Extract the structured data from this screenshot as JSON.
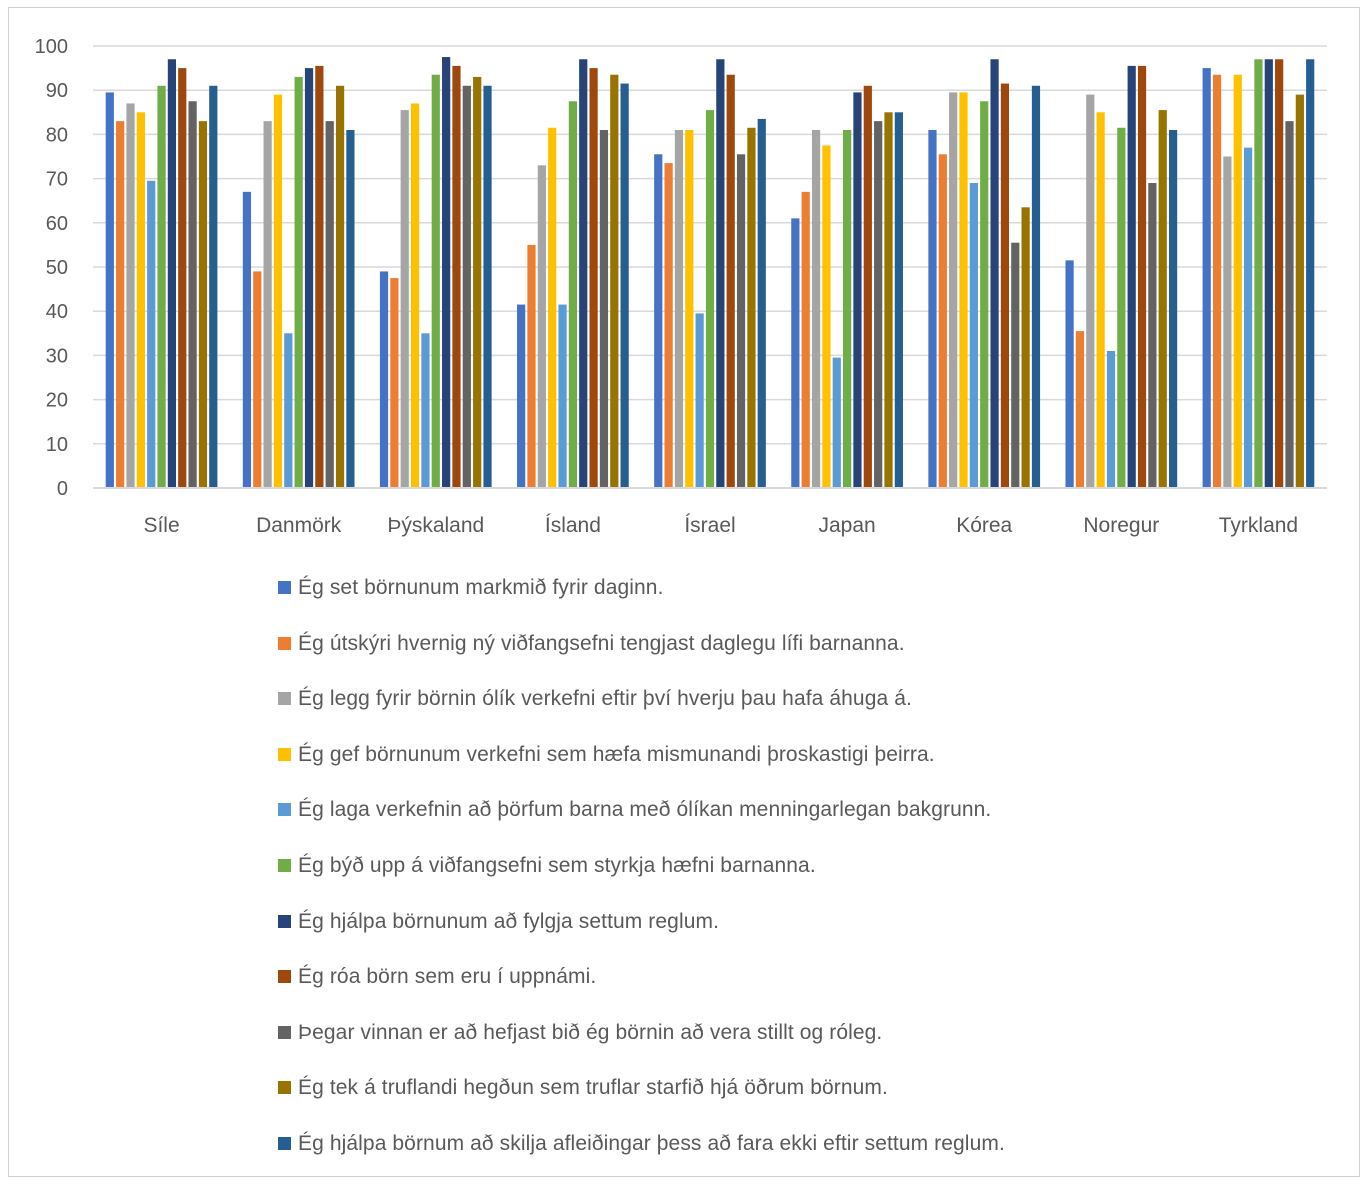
{
  "chart_data": {
    "type": "bar",
    "categories": [
      "Síle",
      "Danmörk",
      "Þýskaland",
      "Ísland",
      "Ísrael",
      "Japan",
      "Kórea",
      "Noregur",
      "Tyrkland"
    ],
    "ylim": [
      0,
      100
    ],
    "yticks": [
      0,
      10,
      20,
      30,
      40,
      50,
      60,
      70,
      80,
      90,
      100
    ],
    "grid": true,
    "legend_position": "bottom",
    "title": "",
    "xlabel": "",
    "ylabel": "",
    "series": [
      {
        "name": "Ég set börnunum markmið fyrir daginn.",
        "color": "#4472C4",
        "values": [
          89.5,
          67,
          49,
          41.5,
          75.5,
          61,
          81,
          51.5,
          95
        ]
      },
      {
        "name": "Ég útskýri hvernig ný viðfangsefni tengjast daglegu lífi barnanna.",
        "color": "#ED7D31",
        "values": [
          83,
          49,
          47.5,
          55,
          73.5,
          67,
          75.5,
          35.5,
          93.5
        ]
      },
      {
        "name": "Ég legg fyrir börnin ólík verkefni eftir því hverju  þau hafa áhuga á.",
        "color": "#A5A5A5",
        "values": [
          87,
          83,
          85.5,
          73,
          81,
          81,
          89.5,
          89,
          75
        ]
      },
      {
        "name": "Ég gef börnunum verkefni sem hæfa mismunandi þroskastigi þeirra.",
        "color": "#FFC000",
        "values": [
          85,
          89,
          87,
          81.5,
          81,
          77.5,
          89.5,
          85,
          93.5
        ]
      },
      {
        "name": "Ég laga verkefnin að þörfum barna með ólíkan menningarlegan  bakgrunn.",
        "color": "#5B9BD5",
        "values": [
          69.5,
          35,
          35,
          41.5,
          39.5,
          29.5,
          69,
          31,
          77
        ]
      },
      {
        "name": "Ég býð upp á viðfangsefni sem styrkja hæfni barnanna.",
        "color": "#70AD47",
        "values": [
          91,
          93,
          93.5,
          87.5,
          85.5,
          81,
          87.5,
          81.5,
          97
        ]
      },
      {
        "name": "Ég hjálpa börnunum að fylgja settum reglum.",
        "color": "#264478",
        "values": [
          97,
          95,
          97.5,
          97,
          97,
          89.5,
          97,
          95.5,
          97
        ]
      },
      {
        "name": "Ég róa börn sem eru í uppnámi.",
        "color": "#9E480E",
        "values": [
          95,
          95.5,
          95.5,
          95,
          93.5,
          91,
          91.5,
          95.5,
          97
        ]
      },
      {
        "name": "Þegar vinnan er að hefjast bið ég börnin að vera stillt og róleg.",
        "color": "#636363",
        "values": [
          87.5,
          83,
          91,
          81,
          75.5,
          83,
          55.5,
          69,
          83
        ]
      },
      {
        "name": "Ég tek á truflandi hegðun sem truflar starfið hjá öðrum börnum.",
        "color": "#997300",
        "values": [
          83,
          91,
          93,
          93.5,
          81.5,
          85,
          63.5,
          85.5,
          89
        ]
      },
      {
        "name": "Ég hjálpa börnum að skilja afleiðingar þess að fara ekki eftir settum reglum.",
        "color": "#255E91",
        "values": [
          91,
          81,
          91,
          91.5,
          83.5,
          85,
          91,
          81,
          97
        ]
      }
    ]
  }
}
